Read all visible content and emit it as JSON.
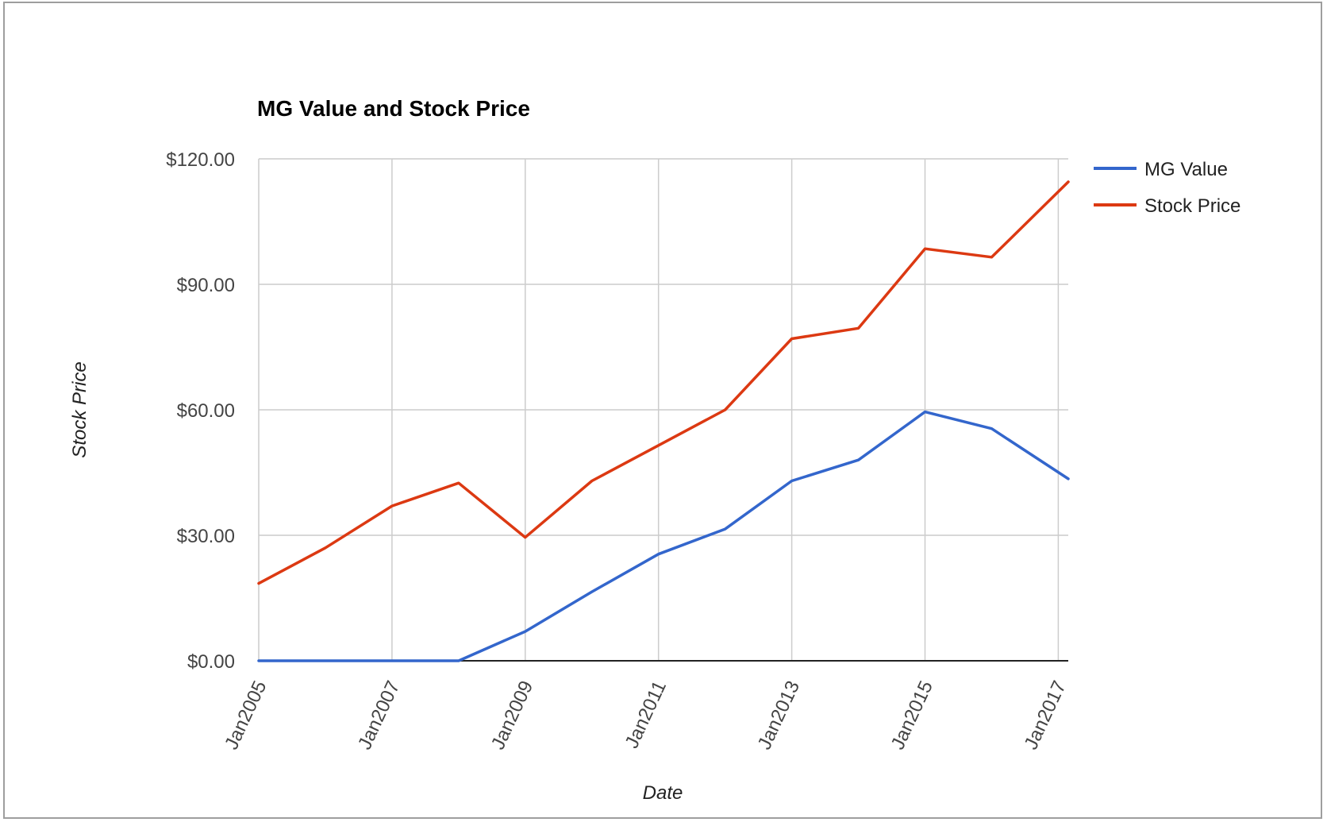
{
  "chart_data": {
    "type": "line",
    "title": "MG Value and Stock Price",
    "xlabel": "Date",
    "ylabel": "Stock Price",
    "y_tick_labels": [
      "$0.00",
      "$30.00",
      "$60.00",
      "$90.00",
      "$120.00"
    ],
    "y_ticks": [
      0,
      30,
      60,
      90,
      120
    ],
    "ylim": [
      0,
      120
    ],
    "x_tick_labels": [
      "Jan2005",
      "Jan2007",
      "Jan2009",
      "Jan2011",
      "Jan2013",
      "Jan2015",
      "Jan2017"
    ],
    "x_ticks": [
      2005,
      2007,
      2009,
      2011,
      2013,
      2015,
      2017
    ],
    "xlim": [
      2005,
      2017.15
    ],
    "grid": true,
    "legend_position": "right",
    "x": [
      2005,
      2006,
      2007,
      2008,
      2009,
      2010,
      2011,
      2012,
      2013,
      2014,
      2015,
      2016,
      2017.15
    ],
    "series": [
      {
        "name": "MG Value",
        "color": "#3366cc",
        "values": [
          0,
          0,
          0,
          0,
          7,
          16.5,
          25.5,
          31.5,
          43,
          48,
          59.5,
          55.5,
          43.5
        ]
      },
      {
        "name": "Stock Price",
        "color": "#dc3912",
        "values": [
          18.5,
          27,
          37,
          42.5,
          29.5,
          43,
          51.5,
          60,
          77,
          79.5,
          98.5,
          96.5,
          114.5
        ]
      }
    ]
  }
}
